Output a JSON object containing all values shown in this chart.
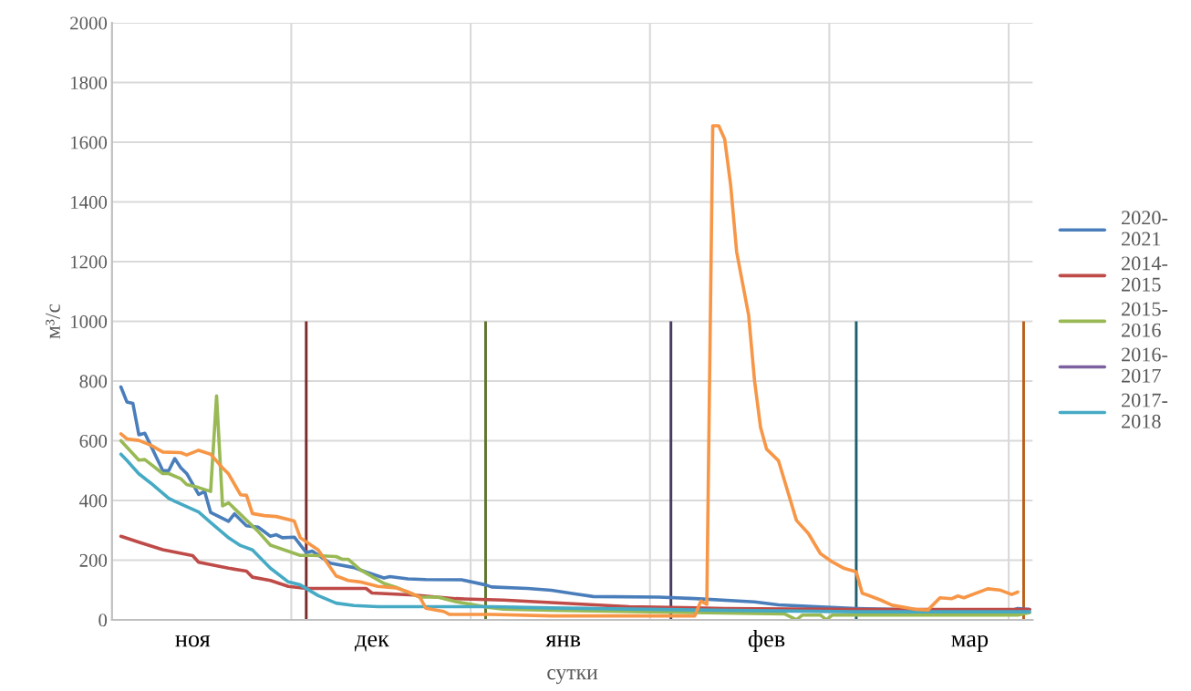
{
  "chart_data": {
    "type": "line",
    "xlabel": "сутки",
    "ylabel": "м³/с",
    "ylim": [
      0,
      2000
    ],
    "yticks": [
      0,
      200,
      400,
      600,
      800,
      1000,
      1200,
      1400,
      1600,
      1800,
      2000
    ],
    "grid": true,
    "legend": "right",
    "line_style": "solid",
    "marker": "none",
    "categories": [
      null,
      null,
      null,
      null,
      null,
      null,
      null,
      null,
      null,
      null,
      null,
      null,
      null,
      "ноя",
      null,
      null,
      null,
      null,
      null,
      null,
      null,
      null,
      null,
      null,
      null,
      null,
      null,
      null,
      null,
      null,
      null,
      null,
      null,
      null,
      null,
      null,
      null,
      null,
      null,
      null,
      null,
      null,
      null,
      "дек",
      null,
      null,
      null,
      null,
      null,
      null,
      null,
      null,
      null,
      null,
      null,
      null,
      null,
      null,
      null,
      null,
      null,
      null,
      null,
      null,
      null,
      null,
      null,
      null,
      null,
      null,
      null,
      null,
      null,
      null,
      null,
      "янв",
      null,
      null,
      null,
      null,
      null,
      null,
      null,
      null,
      null,
      null,
      null,
      null,
      null,
      null,
      null,
      null,
      null,
      null,
      null,
      null,
      null,
      null,
      null,
      null,
      null,
      null,
      null,
      null,
      null,
      null,
      null,
      null,
      null,
      "фев",
      null,
      null,
      null,
      null,
      null,
      null,
      null,
      null,
      null,
      null,
      null,
      null,
      null,
      null,
      null,
      null,
      null,
      null,
      null,
      null,
      null,
      null,
      null,
      null,
      null,
      null,
      null,
      null,
      null,
      null,
      null,
      null,
      null,
      "мар",
      null,
      null,
      null,
      null,
      null,
      null,
      null,
      null,
      null,
      null
    ],
    "series": [
      {
        "name": "2020-2021",
        "color": "#4a7ebb",
        "values": [
          null,
          780,
          730,
          725,
          620,
          625,
          null,
          null,
          500,
          500,
          540,
          510,
          490,
          null,
          420,
          430,
          360,
          null,
          null,
          330,
          355,
          null,
          315,
          null,
          310,
          null,
          280,
          285,
          275,
          null,
          277,
          null,
          225,
          230,
          null,
          null,
          190,
          null,
          null,
          null,
          175,
          null,
          160,
          null,
          null,
          140,
          145,
          null,
          null,
          137,
          null,
          null,
          135,
          null,
          null,
          null,
          null,
          null,
          134,
          null,
          null,
          null,
          117,
          110,
          null,
          null,
          null,
          null,
          null,
          105,
          null,
          null,
          null,
          99,
          null,
          null,
          null,
          87,
          null,
          null,
          78,
          null,
          null,
          null,
          null,
          null,
          null,
          null,
          null,
          null,
          null,
          76,
          null,
          null,
          null,
          null,
          null,
          71,
          null,
          null,
          null,
          null,
          null,
          null,
          null,
          null,
          null,
          60,
          null,
          null,
          null,
          50,
          null,
          null,
          null,
          null,
          null,
          null,
          null,
          42,
          null,
          null,
          null,
          null,
          38,
          null,
          null,
          null,
          null,
          null,
          null,
          null,
          null,
          null,
          null,
          33,
          null,
          null,
          null,
          null,
          null,
          null,
          null,
          null,
          null,
          null,
          null,
          null,
          null,
          null,
          31,
          38,
          null,
          35
        ]
      },
      {
        "name": "2014-2015",
        "color": "#be4b48",
        "values": [
          null,
          280,
          null,
          null,
          260,
          null,
          null,
          null,
          235,
          null,
          null,
          null,
          null,
          215,
          193,
          null,
          null,
          null,
          null,
          173,
          null,
          null,
          163,
          143,
          null,
          null,
          132,
          null,
          null,
          112,
          null,
          null,
          105,
          null,
          null,
          null,
          null,
          null,
          null,
          null,
          null,
          null,
          105,
          90,
          null,
          null,
          null,
          null,
          null,
          null,
          83,
          null,
          null,
          null,
          null,
          null,
          null,
          71,
          null,
          null,
          null,
          null,
          null,
          null,
          null,
          66,
          null,
          null,
          null,
          null,
          null,
          null,
          null,
          58,
          null,
          null,
          null,
          null,
          null,
          null,
          null,
          null,
          null,
          null,
          null,
          null,
          44,
          null,
          null,
          null,
          null,
          null,
          null,
          null,
          null,
          null,
          null,
          null,
          null,
          null,
          null,
          null,
          38,
          null,
          null,
          null,
          null,
          null,
          null,
          null,
          null,
          null,
          null,
          null,
          null,
          null,
          null,
          null,
          null,
          null,
          null,
          null,
          null,
          null,
          35,
          null,
          null,
          null,
          null,
          null,
          null,
          null,
          null,
          null,
          null,
          null,
          null,
          null,
          null,
          null,
          null,
          null,
          null,
          null,
          null,
          null,
          null,
          null,
          null,
          null,
          null,
          null,
          null,
          35
        ]
      },
      {
        "name": "2015-2016",
        "color": "#98b954",
        "values": [
          null,
          600,
          null,
          null,
          535,
          537,
          null,
          null,
          490,
          490,
          null,
          473,
          453,
          null,
          443,
          null,
          430,
          750,
          382,
          392,
          null,
          null,
          null,
          null,
          295,
          null,
          250,
          null,
          null,
          null,
          null,
          216,
          null,
          216,
          null,
          null,
          null,
          212,
          203,
          203,
          null,
          168,
          null,
          null,
          null,
          122,
          null,
          109,
          null,
          null,
          null,
          76,
          null,
          null,
          76,
          null,
          null,
          61,
          null,
          null,
          null,
          null,
          43,
          null,
          null,
          36,
          null,
          null,
          null,
          null,
          null,
          null,
          null,
          32,
          null,
          null,
          null,
          null,
          null,
          null,
          null,
          null,
          null,
          null,
          null,
          null,
          null,
          null,
          null,
          null,
          null,
          null,
          null,
          null,
          null,
          null,
          null,
          24,
          null,
          null,
          null,
          null,
          null,
          null,
          null,
          null,
          null,
          null,
          null,
          null,
          null,
          null,
          20,
          null,
          0,
          16,
          null,
          null,
          16,
          0,
          16,
          null,
          null,
          null,
          null,
          null,
          null,
          null,
          null,
          null,
          null,
          null,
          null,
          null,
          null,
          16,
          null,
          null,
          null,
          null,
          null,
          null,
          null,
          null,
          null,
          null,
          null,
          null,
          null,
          null,
          null,
          16,
          null,
          24
        ]
      },
      {
        "name": "2016-2017",
        "color": "#7d60a0",
        "values": [
          null,
          null,
          null,
          null,
          null,
          null,
          null,
          null,
          null,
          null,
          null,
          null,
          null,
          null,
          null,
          null,
          null,
          null,
          null,
          null,
          null,
          null,
          null,
          null,
          null,
          null,
          null,
          null,
          null,
          null,
          null,
          null,
          null,
          null,
          null,
          null,
          null,
          null,
          null,
          null,
          null,
          null,
          null,
          null,
          null,
          null,
          null,
          null,
          null,
          null,
          null,
          null,
          null,
          null,
          null,
          null,
          null,
          null,
          null,
          null,
          null,
          null,
          null,
          null,
          null,
          null,
          null,
          null,
          null,
          null,
          null,
          null,
          null,
          null,
          null,
          null,
          null,
          null,
          null,
          null,
          null,
          null,
          null,
          null,
          null,
          null,
          null,
          null,
          null,
          null,
          null,
          null,
          null,
          null,
          null,
          null,
          null,
          null,
          null,
          null,
          null,
          null,
          null,
          null,
          null,
          null,
          null,
          null,
          null,
          null,
          null,
          null,
          null,
          null,
          null,
          null,
          null,
          null,
          null,
          null,
          null,
          null,
          null,
          null,
          null,
          null,
          null,
          null,
          null,
          null,
          null,
          null,
          null,
          null,
          null,
          null,
          null,
          null,
          null,
          null,
          null,
          null,
          null,
          null,
          null,
          null,
          null,
          null,
          null,
          null,
          null,
          null,
          null,
          null
        ]
      },
      {
        "name": "2017-2018",
        "color": "#46aac5",
        "values": [
          null,
          555,
          534,
          null,
          489,
          null,
          458,
          null,
          null,
          407,
          397,
          null,
          null,
          null,
          361,
          null,
          326,
          null,
          null,
          275,
          null,
          249,
          null,
          234,
          null,
          null,
          173,
          null,
          null,
          127,
          null,
          117,
          null,
          null,
          81,
          null,
          null,
          56,
          null,
          null,
          48,
          null,
          null,
          null,
          44,
          null,
          null,
          null,
          null,
          null,
          null,
          null,
          null,
          null,
          null,
          null,
          null,
          null,
          null,
          null,
          null,
          null,
          null,
          44,
          null,
          null,
          null,
          null,
          null,
          null,
          null,
          null,
          null,
          40,
          null,
          null,
          null,
          null,
          null,
          null,
          null,
          null,
          null,
          null,
          null,
          null,
          null,
          null,
          null,
          null,
          null,
          null,
          null,
          null,
          null,
          null,
          null,
          33,
          null,
          null,
          null,
          null,
          null,
          null,
          null,
          null,
          null,
          null,
          null,
          null,
          null,
          null,
          null,
          null,
          null,
          null,
          null,
          null,
          null,
          null,
          null,
          null,
          null,
          null,
          27,
          null,
          null,
          null,
          null,
          null,
          null,
          null,
          null,
          null,
          null,
          null,
          null,
          null,
          null,
          null,
          null,
          null,
          null,
          null,
          null,
          null,
          null,
          null,
          null,
          null,
          null,
          null,
          null,
          27
        ]
      },
      {
        "color": "#f79646",
        "values": [
          null,
          623,
          606,
          null,
          601,
          null,
          585,
          null,
          562,
          null,
          null,
          560,
          552,
          null,
          568,
          null,
          555,
          null,
          509,
          489,
          null,
          419,
          417,
          356,
          null,
          349,
          null,
          346,
          null,
          null,
          331,
          275,
          null,
          null,
          234,
          null,
          null,
          147,
          null,
          132,
          null,
          127,
          null,
          null,
          112,
          null,
          null,
          107,
          null,
          94,
          null,
          76,
          39,
          null,
          null,
          28,
          18,
          null,
          null,
          null,
          null,
          null,
          null,
          18,
          null,
          null,
          null,
          null,
          null,
          null,
          null,
          null,
          null,
          13,
          null,
          null,
          null,
          null,
          null,
          null,
          null,
          null,
          null,
          null,
          null,
          null,
          null,
          null,
          null,
          null,
          null,
          null,
          null,
          null,
          null,
          null,
          null,
          13,
          63,
          52,
          1655,
          1655,
          1610,
          1455,
          1232,
          null,
          1021,
          799,
          644,
          572,
          null,
          533,
          466,
          null,
          333,
          null,
          289,
          null,
          222,
          null,
          194,
          null,
          172,
          null,
          161,
          89,
          82,
          null,
          67,
          null,
          49,
          null,
          null,
          null,
          35,
          null,
          33,
          null,
          74,
          null,
          71,
          80,
          74,
          null,
          null,
          null,
          104,
          null,
          100,
          null,
          85,
          93,
          null,
          null
        ]
      },
      {
        "type": "bar",
        "values": [
          null,
          null,
          null,
          null,
          null,
          null,
          null,
          null,
          null,
          null,
          null,
          null,
          null,
          null,
          null,
          null,
          null,
          null,
          null,
          null,
          null,
          null,
          null,
          null,
          null,
          null,
          null,
          null,
          null,
          null,
          null,
          null,
          1000,
          null,
          null,
          null,
          null,
          null,
          null,
          null,
          null,
          null,
          null,
          null,
          null,
          null,
          null,
          null,
          null,
          null,
          null,
          null,
          null,
          null,
          null,
          null,
          null,
          null,
          null,
          null,
          null,
          null,
          1000,
          null,
          null,
          null,
          null,
          null,
          null,
          null,
          null,
          null,
          null,
          null,
          null,
          null,
          null,
          null,
          null,
          null,
          null,
          null,
          null,
          null,
          null,
          null,
          null,
          null,
          null,
          null,
          null,
          null,
          null,
          1000,
          null,
          null,
          null,
          null,
          null,
          null,
          null,
          null,
          null,
          null,
          null,
          null,
          null,
          null,
          null,
          null,
          null,
          null,
          null,
          null,
          null,
          null,
          null,
          null,
          null,
          null,
          null,
          null,
          null,
          null,
          1000,
          null,
          null,
          null,
          null,
          null,
          null,
          null,
          null,
          null,
          null,
          null,
          null,
          null,
          null,
          null,
          null,
          null,
          null,
          null,
          null,
          null,
          null,
          null,
          null,
          null,
          null,
          null,
          1000,
          null
        ],
        "colors": [
          null,
          null,
          null,
          null,
          null,
          null,
          null,
          null,
          null,
          null,
          null,
          null,
          null,
          null,
          null,
          null,
          null,
          null,
          null,
          null,
          null,
          null,
          null,
          null,
          null,
          null,
          null,
          null,
          null,
          null,
          null,
          null,
          "#7b2c2c",
          null,
          null,
          null,
          null,
          null,
          null,
          null,
          null,
          null,
          null,
          null,
          null,
          null,
          null,
          null,
          null,
          null,
          null,
          null,
          null,
          null,
          null,
          null,
          null,
          null,
          null,
          null,
          null,
          null,
          "#5f7530",
          null,
          null,
          null,
          null,
          null,
          null,
          null,
          null,
          null,
          null,
          null,
          null,
          null,
          null,
          null,
          null,
          null,
          null,
          null,
          null,
          null,
          null,
          null,
          null,
          null,
          null,
          null,
          null,
          null,
          null,
          "#4a3b63",
          null,
          null,
          null,
          null,
          null,
          null,
          null,
          null,
          null,
          null,
          null,
          null,
          null,
          null,
          null,
          null,
          null,
          null,
          null,
          null,
          null,
          null,
          null,
          null,
          null,
          null,
          null,
          null,
          null,
          null,
          "#215f6e",
          null,
          null,
          null,
          null,
          null,
          null,
          null,
          null,
          null,
          null,
          null,
          null,
          null,
          null,
          null,
          null,
          null,
          null,
          null,
          null,
          null,
          null,
          null,
          null,
          null,
          null,
          null,
          "#b85f1a",
          null
        ]
      }
    ]
  }
}
